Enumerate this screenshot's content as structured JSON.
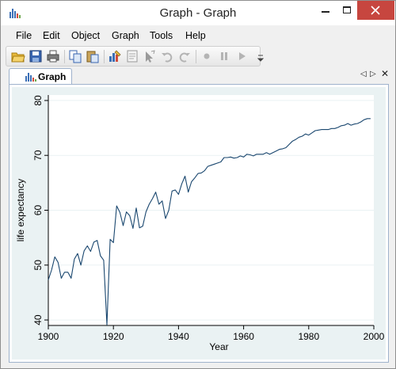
{
  "window": {
    "title": "Graph - Graph",
    "app_icon": "bar-chart-icon",
    "buttons": [
      "minimize-icon",
      "maximize-icon",
      "close-icon"
    ]
  },
  "menu": {
    "items": [
      "File",
      "Edit",
      "Object",
      "Graph",
      "Tools",
      "Help"
    ]
  },
  "toolbar": {
    "icons": [
      "open-folder-icon",
      "save-icon",
      "print-icon",
      "copy-icon",
      "paste-icon",
      "graph-editor-icon",
      "properties-icon",
      "pointer-icon",
      "undo-icon",
      "redo-icon",
      "record-icon",
      "pause-icon",
      "play-icon",
      "overflow-icon"
    ]
  },
  "tabs": [
    {
      "label": "Graph",
      "icon": "bar-chart-icon",
      "active": true
    }
  ],
  "tab_controls": [
    "scroll-left-icon",
    "scroll-right-icon",
    "close-icon"
  ],
  "colors": {
    "line": "#1a476f",
    "graph_region": "#eaf2f3",
    "plot_region": "#ffffff",
    "close_button": "#c7463f"
  },
  "chart_data": {
    "type": "line",
    "title": "",
    "xlabel": "Year",
    "ylabel": "life expectancy",
    "xlim": [
      1900,
      2000
    ],
    "ylim": [
      39,
      81
    ],
    "xticks": [
      1900,
      1920,
      1940,
      1960,
      1980,
      2000
    ],
    "yticks": [
      40,
      50,
      60,
      70,
      80
    ],
    "grid": true,
    "legend": "none",
    "x": [
      1900,
      1901,
      1902,
      1903,
      1904,
      1905,
      1906,
      1907,
      1908,
      1909,
      1910,
      1911,
      1912,
      1913,
      1914,
      1915,
      1916,
      1917,
      1918,
      1919,
      1920,
      1921,
      1922,
      1923,
      1924,
      1925,
      1926,
      1927,
      1928,
      1929,
      1930,
      1931,
      1932,
      1933,
      1934,
      1935,
      1936,
      1937,
      1938,
      1939,
      1940,
      1941,
      1942,
      1943,
      1944,
      1945,
      1946,
      1947,
      1948,
      1949,
      1950,
      1951,
      1952,
      1953,
      1954,
      1955,
      1956,
      1957,
      1958,
      1959,
      1960,
      1961,
      1962,
      1963,
      1964,
      1965,
      1966,
      1967,
      1968,
      1969,
      1970,
      1971,
      1972,
      1973,
      1974,
      1975,
      1976,
      1977,
      1978,
      1979,
      1980,
      1981,
      1982,
      1983,
      1984,
      1985,
      1986,
      1987,
      1988,
      1989,
      1990,
      1991,
      1992,
      1993,
      1994,
      1995,
      1996,
      1997,
      1998,
      1999
    ],
    "y": [
      47.3,
      49.1,
      51.5,
      50.5,
      47.6,
      48.7,
      48.7,
      47.6,
      51.1,
      52.1,
      50.0,
      52.6,
      53.5,
      52.5,
      54.2,
      54.5,
      51.7,
      50.9,
      39.1,
      54.7,
      54.1,
      60.8,
      59.6,
      57.2,
      59.7,
      59.0,
      56.7,
      60.4,
      56.8,
      57.1,
      59.7,
      61.1,
      62.1,
      63.3,
      61.1,
      61.7,
      58.5,
      60.0,
      63.5,
      63.7,
      62.9,
      64.8,
      66.2,
      63.3,
      65.2,
      65.9,
      66.7,
      66.8,
      67.2,
      68.0,
      68.2,
      68.4,
      68.6,
      68.8,
      69.6,
      69.6,
      69.7,
      69.5,
      69.6,
      69.9,
      69.7,
      70.2,
      70.1,
      69.9,
      70.2,
      70.2,
      70.2,
      70.5,
      70.2,
      70.5,
      70.8,
      71.1,
      71.2,
      71.4,
      72.0,
      72.6,
      72.9,
      73.3,
      73.5,
      73.9,
      73.7,
      74.1,
      74.5,
      74.6,
      74.7,
      74.7,
      74.7,
      74.9,
      74.9,
      75.1,
      75.4,
      75.5,
      75.8,
      75.5,
      75.7,
      75.8,
      76.1,
      76.5,
      76.7,
      76.7
    ]
  }
}
